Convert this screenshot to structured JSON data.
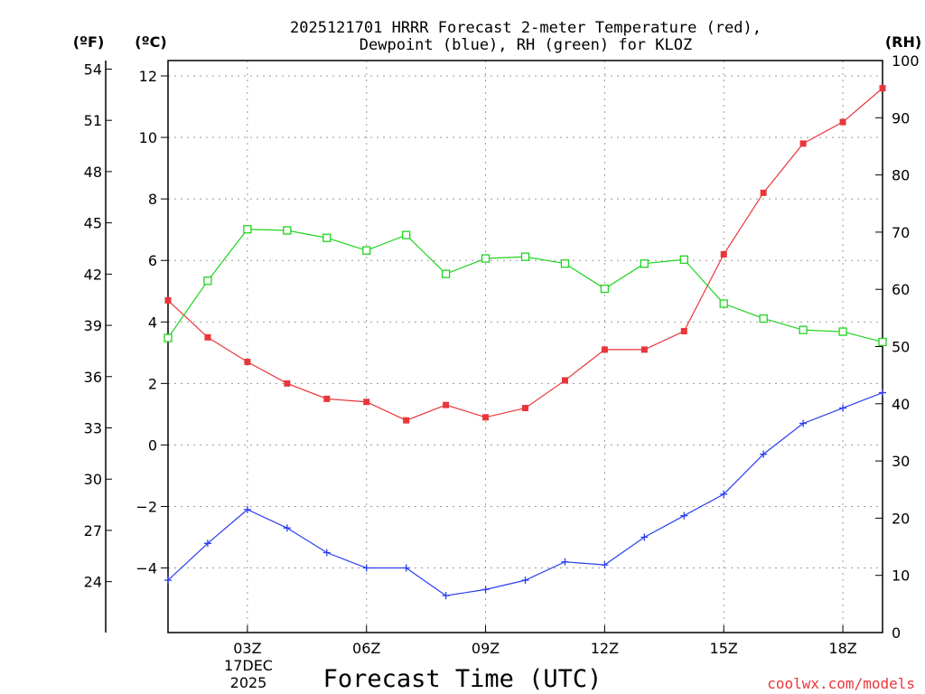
{
  "chart_data": {
    "type": "line",
    "title": "2025121701 HRRR Forecast 2-meter Temperature (red),",
    "title_line2": "Dewpoint (blue), RH (green) for KLOZ",
    "station": "KLOZ",
    "xlabel": "Forecast Time (UTC)",
    "x_forecast_hour": [
      1,
      2,
      3,
      4,
      5,
      6,
      7,
      8,
      9,
      10,
      11,
      12,
      13,
      14,
      15,
      16,
      17,
      18,
      19
    ],
    "x_tick_labels": [
      "03Z",
      "06Z",
      "09Z",
      "12Z",
      "15Z",
      "18Z"
    ],
    "x_tick_hours": [
      3,
      6,
      9,
      12,
      15,
      18
    ],
    "date_label": [
      "17DEC",
      "2025"
    ],
    "xlim": [
      1,
      19
    ],
    "y_left_c": {
      "unit": "(ºC)",
      "ylim": [
        -6.1,
        12.5
      ],
      "ticks": [
        -4,
        -2,
        0,
        2,
        4,
        6,
        8,
        10,
        12
      ],
      "tick_labels": [
        "−4",
        "−2",
        "0",
        "2",
        "4",
        "6",
        "8",
        "10",
        "12"
      ]
    },
    "y_left_f": {
      "unit": "(ºF)",
      "ticks": [
        24,
        27,
        30,
        33,
        36,
        39,
        42,
        45,
        48,
        51,
        54
      ],
      "tick_labels": [
        "24",
        "27",
        "30",
        "33",
        "36",
        "39",
        "42",
        "45",
        "48",
        "51",
        "54"
      ]
    },
    "y_right_rh": {
      "unit": "(RH)",
      "ylim": [
        0,
        100
      ],
      "ticks": [
        0,
        10,
        20,
        30,
        40,
        50,
        60,
        70,
        80,
        90,
        100
      ],
      "tick_labels": [
        "0",
        "10",
        "20",
        "30",
        "40",
        "50",
        "60",
        "70",
        "80",
        "90",
        "100"
      ]
    },
    "series": [
      {
        "name": "Temperature",
        "axis": "celsius",
        "color": "#e8363a",
        "marker": "filled-square",
        "values": [
          4.7,
          3.5,
          2.7,
          2.0,
          1.5,
          1.4,
          0.8,
          1.3,
          0.9,
          1.2,
          2.1,
          3.1,
          3.1,
          3.7,
          6.2,
          8.2,
          9.8,
          10.5,
          11.6
        ]
      },
      {
        "name": "Dewpoint",
        "axis": "celsius",
        "color": "#2a3ef0",
        "marker": "plus",
        "values": [
          -4.4,
          -3.2,
          -2.1,
          -2.7,
          -3.5,
          -4.0,
          -4.0,
          -4.9,
          -4.7,
          -4.4,
          -3.8,
          -3.9,
          -3.0,
          -2.3,
          -1.6,
          -0.3,
          0.7,
          1.2,
          1.7
        ]
      },
      {
        "name": "RH",
        "axis": "rh",
        "color": "#1fd31f",
        "marker": "open-square",
        "values": [
          51.5,
          61.5,
          70.5,
          70.3,
          69.0,
          66.8,
          69.5,
          62.7,
          65.4,
          65.7,
          64.5,
          60.1,
          64.5,
          65.2,
          57.5,
          54.9,
          52.9,
          52.6,
          50.8
        ]
      }
    ]
  },
  "credit": "coolwx.com/models",
  "colors": {
    "temperature": "#e8363a",
    "dewpoint": "#2a3ef0",
    "rh": "#1fd31f",
    "credit": "#e8363a"
  }
}
